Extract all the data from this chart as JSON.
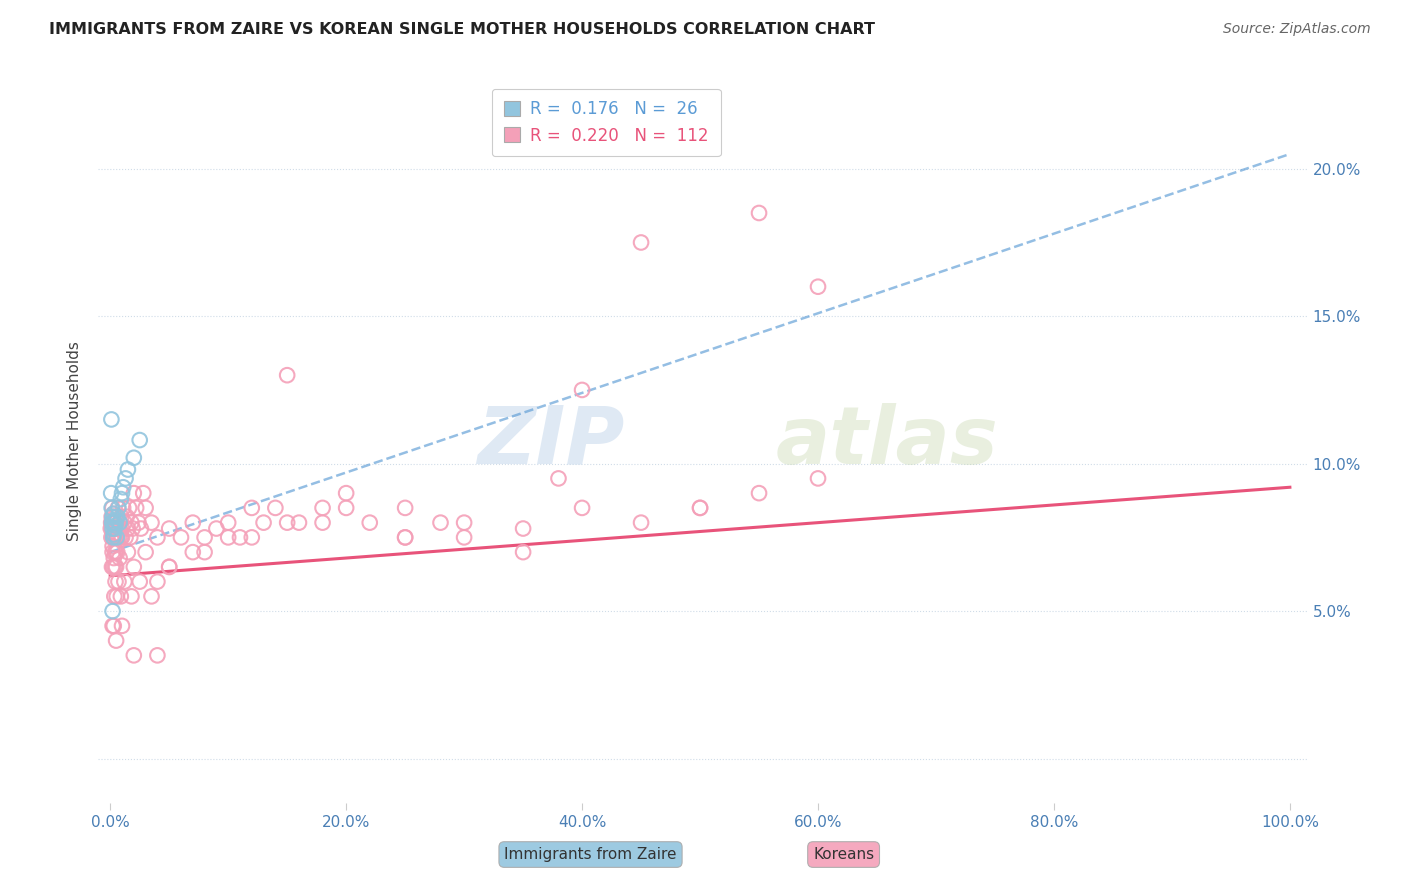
{
  "title": "IMMIGRANTS FROM ZAIRE VS KOREAN SINGLE MOTHER HOUSEHOLDS CORRELATION CHART",
  "source": "Source: ZipAtlas.com",
  "ylabel": "Single Mother Households",
  "watermark_zip": "ZIP",
  "watermark_atlas": "atlas",
  "xlim": [
    0.0,
    100.0
  ],
  "ylim": [
    -1.5,
    23.0
  ],
  "ytick_vals": [
    0.0,
    5.0,
    10.0,
    15.0,
    20.0
  ],
  "ytick_labels": [
    "",
    "5.0%",
    "10.0%",
    "15.0%",
    "20.0%"
  ],
  "xtick_vals": [
    0.0,
    20.0,
    40.0,
    60.0,
    80.0,
    100.0
  ],
  "xtick_labels": [
    "0.0%",
    "20.0%",
    "40.0%",
    "60.0%",
    "80.0%",
    "100.0%"
  ],
  "legend1_r": "0.176",
  "legend1_n": "26",
  "legend2_r": "0.220",
  "legend2_n": "112",
  "blue_scatter_color": "#92c5de",
  "pink_scatter_color": "#f4a0b8",
  "blue_line_color": "#5b9bd5",
  "pink_line_color": "#e8537a",
  "blue_trendline": [
    0.0,
    7.0,
    100.0,
    20.5
  ],
  "pink_trendline": [
    0.0,
    6.2,
    100.0,
    9.2
  ],
  "zaire_x": [
    0.08,
    0.12,
    0.15,
    0.18,
    0.2,
    0.22,
    0.25,
    0.28,
    0.3,
    0.35,
    0.4,
    0.45,
    0.5,
    0.55,
    0.6,
    0.7,
    0.8,
    0.9,
    1.0,
    1.1,
    1.3,
    1.5,
    2.0,
    2.5,
    0.1,
    0.2
  ],
  "zaire_y": [
    9.0,
    8.5,
    8.0,
    8.2,
    7.8,
    8.0,
    7.5,
    8.3,
    7.6,
    7.8,
    8.0,
    7.9,
    8.1,
    7.5,
    8.2,
    8.5,
    8.0,
    8.8,
    9.0,
    9.2,
    9.5,
    9.8,
    10.2,
    10.8,
    11.5,
    5.0
  ],
  "korean_x": [
    0.05,
    0.08,
    0.1,
    0.12,
    0.15,
    0.18,
    0.2,
    0.22,
    0.25,
    0.28,
    0.3,
    0.32,
    0.35,
    0.38,
    0.4,
    0.42,
    0.45,
    0.48,
    0.5,
    0.55,
    0.6,
    0.65,
    0.7,
    0.75,
    0.8,
    0.85,
    0.9,
    0.95,
    1.0,
    1.1,
    1.2,
    1.3,
    1.4,
    1.5,
    1.6,
    1.7,
    1.8,
    1.9,
    2.0,
    2.2,
    2.4,
    2.6,
    2.8,
    3.0,
    3.5,
    4.0,
    5.0,
    6.0,
    7.0,
    8.0,
    9.0,
    10.0,
    11.0,
    12.0,
    13.0,
    14.0,
    16.0,
    18.0,
    20.0,
    22.0,
    25.0,
    28.0,
    30.0,
    35.0,
    38.0,
    40.0,
    45.0,
    50.0,
    55.0,
    60.0,
    0.15,
    0.2,
    0.25,
    0.3,
    0.4,
    0.5,
    0.6,
    0.8,
    1.0,
    1.5,
    2.0,
    3.0,
    4.0,
    5.0,
    7.0,
    10.0,
    15.0,
    20.0,
    25.0,
    30.0,
    0.35,
    0.45,
    0.55,
    0.7,
    0.9,
    1.2,
    1.8,
    2.5,
    3.5,
    5.0,
    8.0,
    12.0,
    18.0,
    25.0,
    35.0,
    50.0,
    0.2,
    0.3,
    0.5,
    1.0,
    2.0,
    4.0
  ],
  "korean_y": [
    7.8,
    8.0,
    7.5,
    8.2,
    7.8,
    8.5,
    7.2,
    8.0,
    7.5,
    8.3,
    6.8,
    7.5,
    8.0,
    7.8,
    6.5,
    8.2,
    7.5,
    7.0,
    8.0,
    7.8,
    7.5,
    8.5,
    7.8,
    7.5,
    7.8,
    8.0,
    7.5,
    8.2,
    7.8,
    8.5,
    8.0,
    7.5,
    8.2,
    7.8,
    8.5,
    7.5,
    8.0,
    7.8,
    9.0,
    8.5,
    8.0,
    7.8,
    9.0,
    8.5,
    8.0,
    7.5,
    7.8,
    7.5,
    8.0,
    7.5,
    7.8,
    8.0,
    7.5,
    8.5,
    8.0,
    8.5,
    8.0,
    8.5,
    9.0,
    8.0,
    8.5,
    8.0,
    7.5,
    7.8,
    9.5,
    8.5,
    8.0,
    8.5,
    9.0,
    9.5,
    6.5,
    7.0,
    6.5,
    7.5,
    7.0,
    6.5,
    7.0,
    6.8,
    7.5,
    7.0,
    6.5,
    7.0,
    6.0,
    6.5,
    7.0,
    7.5,
    8.0,
    8.5,
    7.5,
    8.0,
    5.5,
    6.0,
    5.5,
    6.0,
    5.5,
    6.0,
    5.5,
    6.0,
    5.5,
    6.5,
    7.0,
    7.5,
    8.0,
    7.5,
    7.0,
    8.5,
    4.5,
    4.5,
    4.0,
    4.5,
    3.5,
    3.5
  ],
  "korean_outliers_x": [
    45.0,
    60.0,
    55.0,
    40.0,
    15.0
  ],
  "korean_outliers_y": [
    17.5,
    16.0,
    18.5,
    12.5,
    13.0
  ]
}
